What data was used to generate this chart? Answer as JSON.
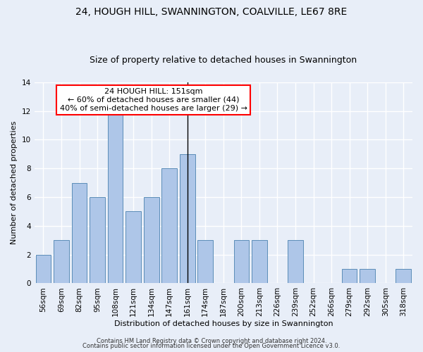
{
  "title": "24, HOUGH HILL, SWANNINGTON, COALVILLE, LE67 8RE",
  "subtitle": "Size of property relative to detached houses in Swannington",
  "xlabel": "Distribution of detached houses by size in Swannington",
  "ylabel": "Number of detached properties",
  "categories": [
    "56sqm",
    "69sqm",
    "82sqm",
    "95sqm",
    "108sqm",
    "121sqm",
    "134sqm",
    "147sqm",
    "161sqm",
    "174sqm",
    "187sqm",
    "200sqm",
    "213sqm",
    "226sqm",
    "239sqm",
    "252sqm",
    "266sqm",
    "279sqm",
    "292sqm",
    "305sqm",
    "318sqm"
  ],
  "values": [
    2,
    3,
    7,
    6,
    12,
    5,
    6,
    8,
    9,
    3,
    0,
    3,
    3,
    0,
    3,
    0,
    0,
    1,
    1,
    0,
    1
  ],
  "bar_color": "#aec6e8",
  "bar_edge_color": "#5b8db8",
  "ylim": [
    0,
    14
  ],
  "yticks": [
    0,
    2,
    4,
    6,
    8,
    10,
    12,
    14
  ],
  "annotation_line1": "24 HOUGH HILL: 151sqm",
  "annotation_line2": "← 60% of detached houses are smaller (44)",
  "annotation_line3": "40% of semi-detached houses are larger (29) →",
  "vline_index": 8,
  "footer1": "Contains HM Land Registry data © Crown copyright and database right 2024.",
  "footer2": "Contains public sector information licensed under the Open Government Licence v3.0.",
  "background_color": "#e8eef8",
  "grid_color": "#ffffff",
  "title_fontsize": 10,
  "subtitle_fontsize": 9,
  "axis_label_fontsize": 8,
  "tick_fontsize": 7.5,
  "footer_fontsize": 6,
  "annotation_fontsize": 8
}
